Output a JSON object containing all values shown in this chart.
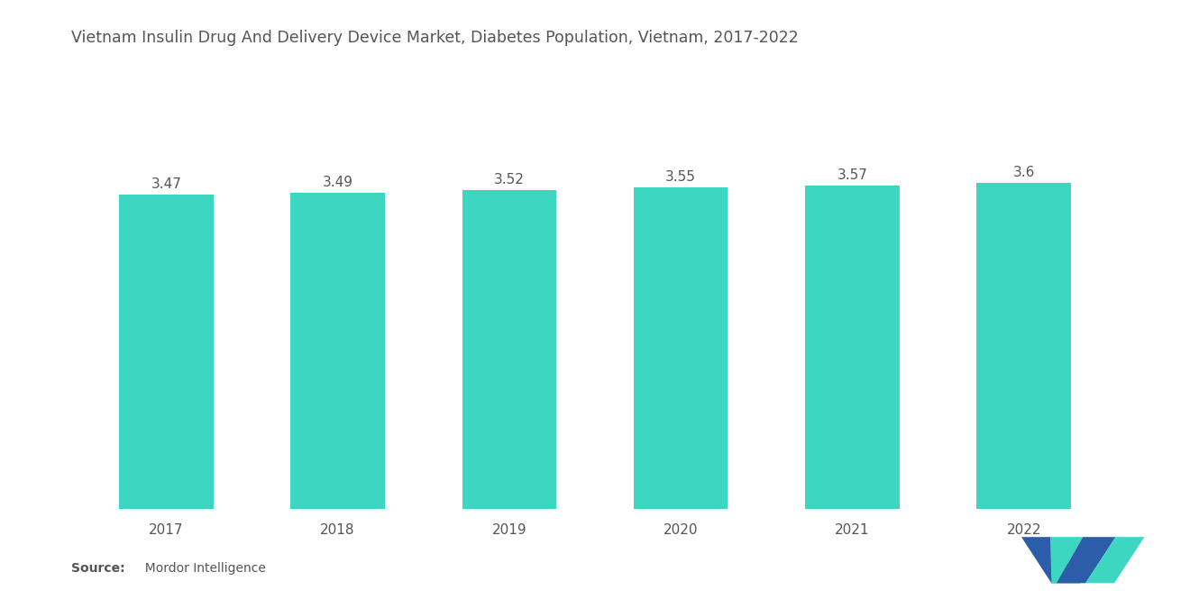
{
  "title": "Vietnam Insulin Drug And Delivery Device Market, Diabetes Population, Vietnam, 2017-2022",
  "years": [
    "2017",
    "2018",
    "2019",
    "2020",
    "2021",
    "2022"
  ],
  "values": [
    3.47,
    3.49,
    3.52,
    3.55,
    3.57,
    3.6
  ],
  "bar_color": "#3DD6C0",
  "background_color": "#FFFFFF",
  "title_fontsize": 12.5,
  "label_fontsize": 11,
  "tick_fontsize": 11,
  "source_fontsize": 10,
  "ylim_min": 0,
  "ylim_max": 4.3,
  "bar_width": 0.55,
  "text_color": "#555555",
  "logo_left_color": "#2B5DA8",
  "logo_right_color": "#3DD6C0"
}
